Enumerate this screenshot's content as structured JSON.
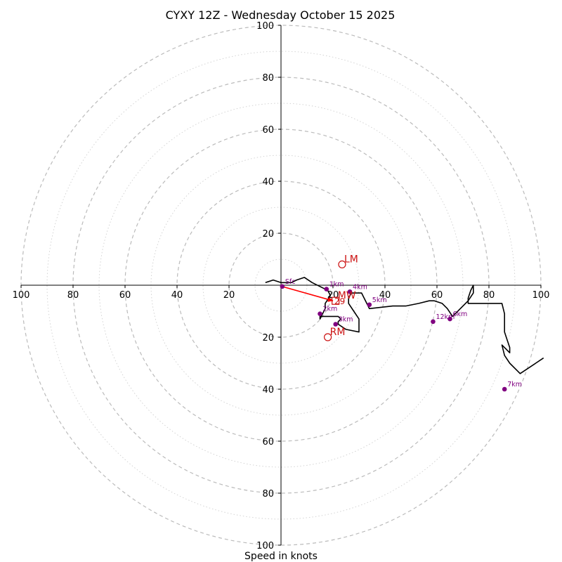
{
  "chart_data": {
    "type": "hodograph",
    "title": "CYXY 12Z - Wednesday October 15 2025",
    "xlabel": "Speed in knots",
    "range": [
      -100,
      100
    ],
    "ring_labels_major": [
      20,
      40,
      60,
      80,
      100
    ],
    "x_tick_labels": [
      "100",
      "80",
      "60",
      "40",
      "20",
      "20",
      "40",
      "60",
      "80",
      "100"
    ],
    "y_tick_labels": [
      "100",
      "80",
      "60",
      "40",
      "20",
      "20",
      "40",
      "60",
      "80",
      "100"
    ],
    "ring_spacing_minor": 10,
    "colors": {
      "trace": "#000000",
      "points": "#800080",
      "storm_motion": "#cc1111",
      "shear_vector": "#ff0000",
      "grid": "#bbbbbb"
    },
    "hodograph_trace": [
      [
        -6,
        1
      ],
      [
        -3,
        2
      ],
      [
        0,
        1
      ],
      [
        4,
        1
      ],
      [
        6,
        2
      ],
      [
        9,
        3
      ],
      [
        12,
        1
      ],
      [
        16,
        -1
      ],
      [
        18,
        -2
      ],
      [
        19,
        -4
      ],
      [
        17,
        -7
      ],
      [
        17,
        -9
      ],
      [
        16,
        -11
      ],
      [
        15,
        -13
      ],
      [
        15,
        -12
      ],
      [
        17,
        -12
      ],
      [
        21,
        -12
      ],
      [
        22,
        -12
      ],
      [
        23,
        -13
      ],
      [
        22,
        -14
      ],
      [
        22,
        -15
      ],
      [
        25,
        -17
      ],
      [
        30,
        -18
      ],
      [
        30,
        -13
      ],
      [
        28,
        -10
      ],
      [
        26,
        -7
      ],
      [
        26,
        -5
      ],
      [
        27,
        -3
      ],
      [
        31,
        -3
      ],
      [
        32,
        -5
      ],
      [
        33,
        -7
      ],
      [
        34,
        -9
      ],
      [
        43,
        -8
      ],
      [
        48,
        -8
      ],
      [
        53,
        -7
      ],
      [
        57,
        -6
      ],
      [
        59,
        -6
      ],
      [
        62,
        -7
      ],
      [
        64,
        -9
      ],
      [
        66,
        -12
      ],
      [
        69,
        -9
      ],
      [
        72,
        -6
      ],
      [
        74,
        -3
      ],
      [
        74,
        0
      ],
      [
        73,
        -2
      ],
      [
        72,
        -5
      ],
      [
        72,
        -7
      ],
      [
        85,
        -7
      ],
      [
        86,
        -11
      ],
      [
        86,
        -15
      ],
      [
        86,
        -18
      ],
      [
        87,
        -21
      ],
      [
        88,
        -24
      ],
      [
        88,
        -26
      ],
      [
        85,
        -23
      ],
      [
        86,
        -27
      ],
      [
        88,
        -30
      ],
      [
        91,
        -33
      ],
      [
        92,
        -34
      ],
      [
        98,
        -30
      ],
      [
        101,
        -28
      ]
    ],
    "height_markers": [
      {
        "label": "Sfc",
        "u": 0.5,
        "v": -0.5
      },
      {
        "label": "1km",
        "u": 17.5,
        "v": -1.5
      },
      {
        "label": "2km",
        "u": 15,
        "v": -11
      },
      {
        "label": "3km",
        "u": 21,
        "v": -15
      },
      {
        "label": "4km",
        "u": 26.5,
        "v": -2.5
      },
      {
        "label": "5km",
        "u": 34,
        "v": -7.5
      },
      {
        "label": "6km",
        "u": 65,
        "v": -13
      },
      {
        "label": "7km",
        "u": 86,
        "v": -40
      },
      {
        "label": "12km",
        "u": 58.5,
        "v": -14
      }
    ],
    "storm_motion": [
      {
        "label": "LM",
        "u": 23.5,
        "v": 8
      },
      {
        "label": "RM",
        "u": 18,
        "v": -20
      },
      {
        "label": "MW",
        "u": 21,
        "v": -6
      }
    ],
    "shear_vector": {
      "label": "29",
      "from": [
        0.5,
        -0.5
      ],
      "to": [
        20,
        -6
      ]
    }
  }
}
